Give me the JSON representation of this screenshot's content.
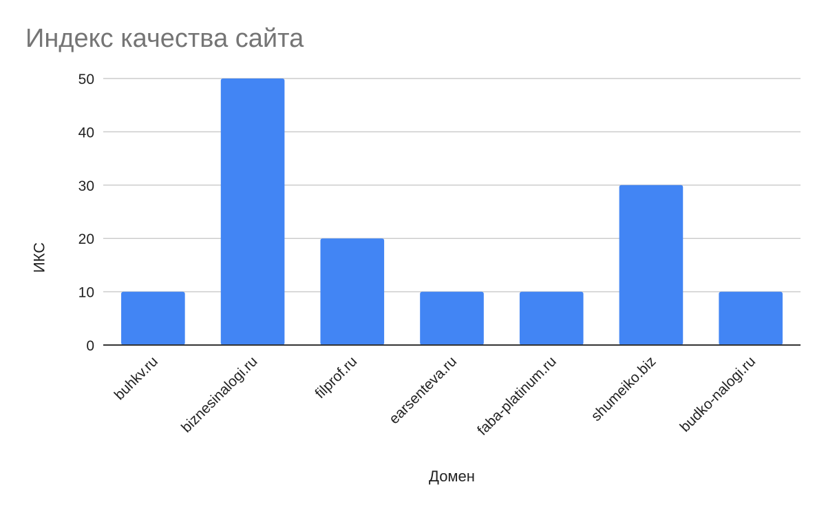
{
  "chart_data": {
    "type": "bar",
    "title": "Индекс качества сайта",
    "xlabel": "Домен",
    "ylabel": "ИКС",
    "categories": [
      "buhkv.ru",
      "biznesinalogi.ru",
      "filprof.ru",
      "earsenteva.ru",
      "faba-platinum.ru",
      "shumeiko.biz",
      "budko-nalogi.ru"
    ],
    "values": [
      10,
      50,
      20,
      10,
      10,
      30,
      10
    ],
    "ylim": [
      0,
      50
    ],
    "yticks": [
      0,
      10,
      20,
      30,
      40,
      50
    ],
    "grid": true,
    "legend": "none",
    "bar_color": "#4285f4"
  }
}
